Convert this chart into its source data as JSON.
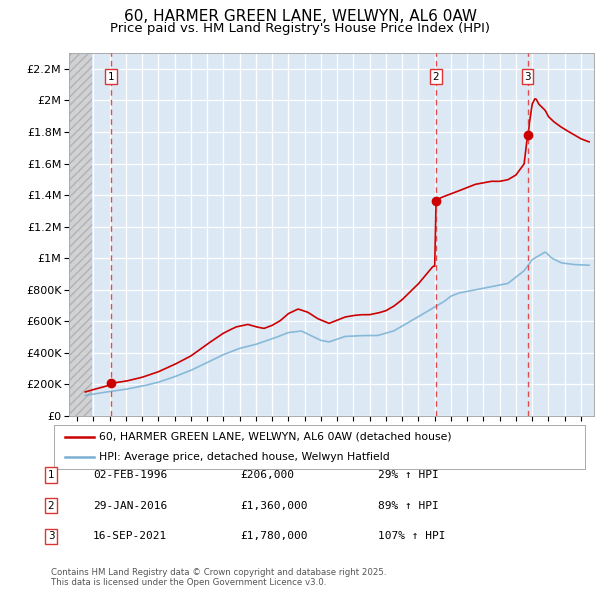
{
  "title": "60, HARMER GREEN LANE, WELWYN, AL6 0AW",
  "subtitle": "Price paid vs. HM Land Registry's House Price Index (HPI)",
  "title_fontsize": 11,
  "subtitle_fontsize": 9.5,
  "background_color": "#ffffff",
  "plot_bg_color": "#dce9f5",
  "red_color": "#cc0000",
  "blue_color": "#7ab0d4",
  "dashed_red": "#cc0000",
  "ylim": [
    0,
    2300000
  ],
  "xlim": [
    1993.5,
    2025.8
  ],
  "hatch_end_year": 1994.9,
  "yticks": [
    0,
    200000,
    400000,
    600000,
    800000,
    1000000,
    1200000,
    1400000,
    1600000,
    1800000,
    2000000,
    2200000
  ],
  "ytick_labels": [
    "£0",
    "£200K",
    "£400K",
    "£600K",
    "£800K",
    "£1M",
    "£1.2M",
    "£1.4M",
    "£1.6M",
    "£1.8M",
    "£2M",
    "£2.2M"
  ],
  "xticks": [
    1994,
    1995,
    1996,
    1997,
    1998,
    1999,
    2000,
    2001,
    2002,
    2003,
    2004,
    2005,
    2006,
    2007,
    2008,
    2009,
    2010,
    2011,
    2012,
    2013,
    2014,
    2015,
    2016,
    2017,
    2018,
    2019,
    2020,
    2021,
    2022,
    2023,
    2024,
    2025
  ],
  "sale_dates_num": [
    1996.08,
    2016.07,
    2021.71
  ],
  "sale_prices": [
    206000,
    1360000,
    1780000
  ],
  "sale_labels": [
    "1",
    "2",
    "3"
  ],
  "sale_date_strs": [
    "02-FEB-1996",
    "29-JAN-2016",
    "16-SEP-2021"
  ],
  "sale_pct": [
    "29% ↑ HPI",
    "89% ↑ HPI",
    "107% ↑ HPI"
  ],
  "sale_price_strs": [
    "£206,000",
    "£1,360,000",
    "£1,780,000"
  ],
  "legend_line1": "60, HARMER GREEN LANE, WELWYN, AL6 0AW (detached house)",
  "legend_line2": "HPI: Average price, detached house, Welwyn Hatfield",
  "footer": "Contains HM Land Registry data © Crown copyright and database right 2025.\nThis data is licensed under the Open Government Licence v3.0."
}
